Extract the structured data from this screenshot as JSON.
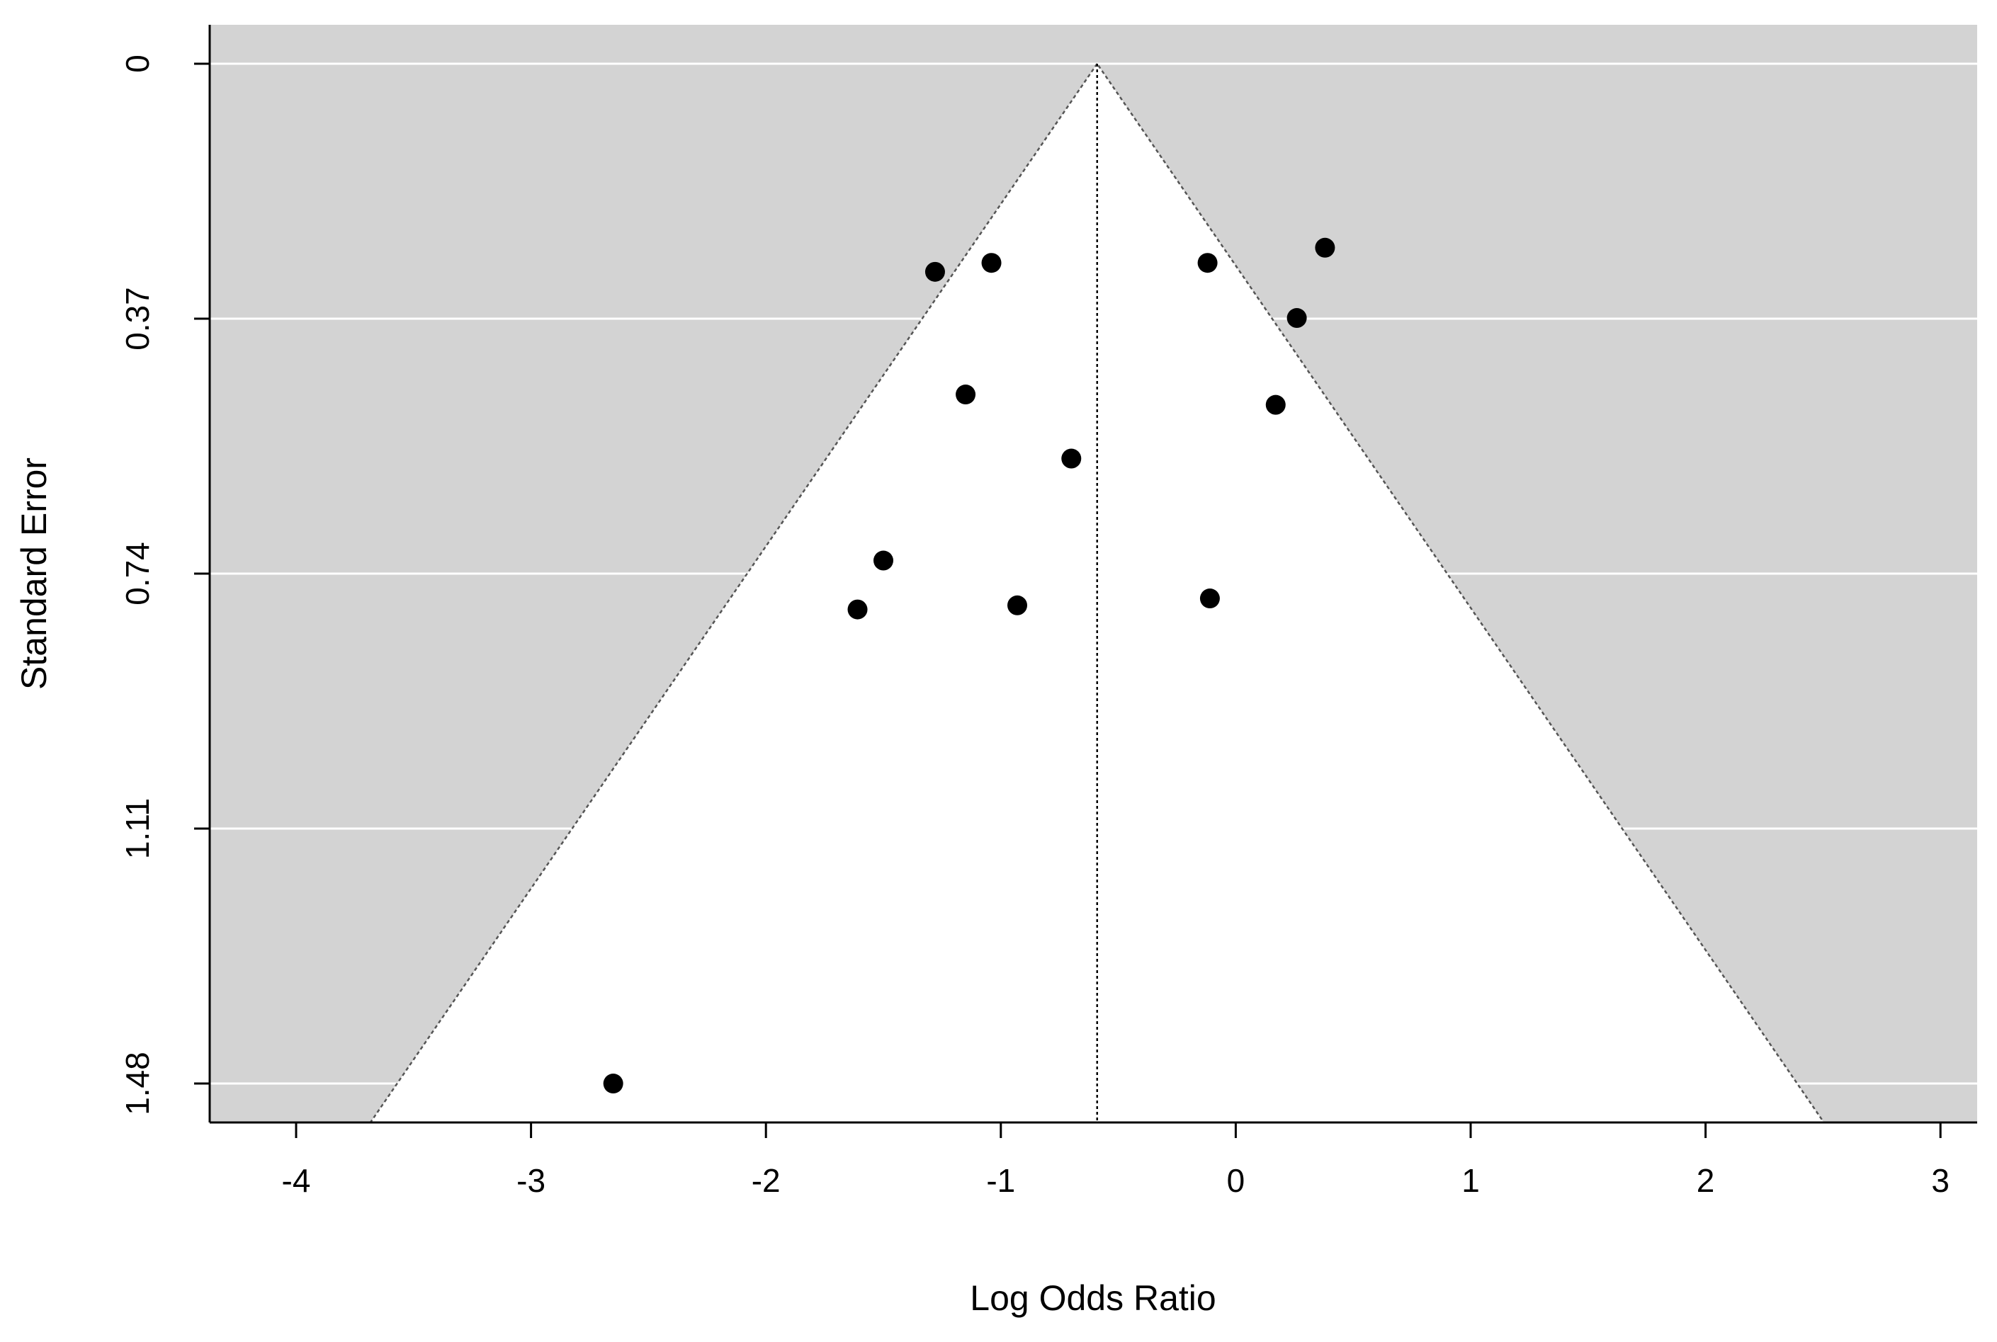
{
  "chart_data": {
    "type": "scatter",
    "subtype": "funnel",
    "title": "",
    "xlabel": "Log Odds Ratio",
    "ylabel": "Standard Error",
    "xlim": [
      -4.36,
      3.27
    ],
    "ylim": [
      1.48,
      0
    ],
    "y_reversed": true,
    "x_ticks": [
      -4,
      -3,
      -2,
      -1,
      0,
      1,
      2,
      3
    ],
    "x_tick_labels": [
      "-4",
      "-3",
      "-2",
      "-1",
      "0",
      "1",
      "2",
      "3"
    ],
    "y_ticks": [
      0,
      0.37,
      0.74,
      1.11,
      1.48
    ],
    "y_tick_labels": [
      "0",
      "0.37",
      "0.74",
      "1.11",
      "1.48"
    ],
    "grid": true,
    "background_color": "#d3d3d3",
    "funnel_color": "#ffffff",
    "point_color": "#000000",
    "center_estimate": -0.59,
    "funnel_bounds_at_max_se": [
      -3.61,
      2.39
    ],
    "points": [
      {
        "x": -1.28,
        "y": 0.302
      },
      {
        "x": -1.04,
        "y": 0.289
      },
      {
        "x": -0.12,
        "y": 0.289
      },
      {
        "x": 0.38,
        "y": 0.267
      },
      {
        "x": 0.26,
        "y": 0.369
      },
      {
        "x": -1.15,
        "y": 0.48
      },
      {
        "x": 0.17,
        "y": 0.495
      },
      {
        "x": -0.7,
        "y": 0.573
      },
      {
        "x": -1.5,
        "y": 0.721
      },
      {
        "x": -1.61,
        "y": 0.792
      },
      {
        "x": -0.93,
        "y": 0.786
      },
      {
        "x": -0.11,
        "y": 0.776
      },
      {
        "x": -2.65,
        "y": 1.48
      }
    ]
  }
}
